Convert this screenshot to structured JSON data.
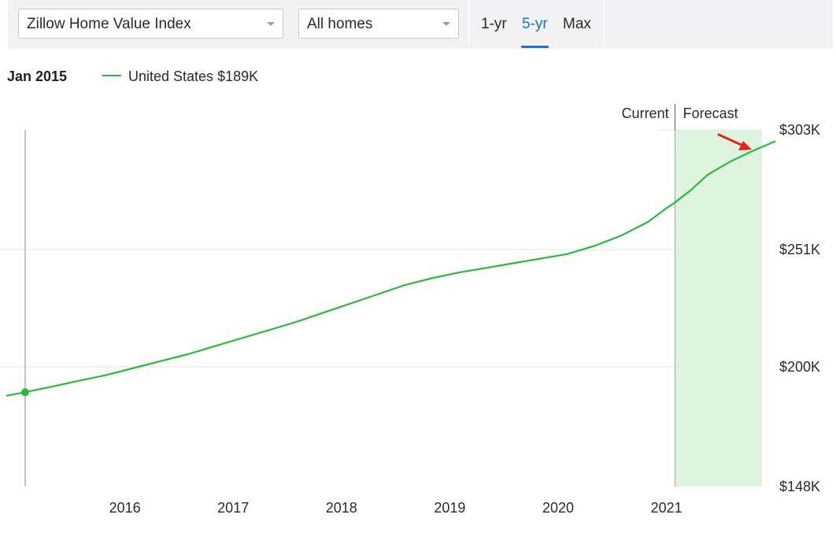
{
  "controls": {
    "metric_select": "Zillow Home Value Index",
    "home_type_select": "All homes",
    "range_tabs": [
      "1-yr",
      "5-yr",
      "Max"
    ],
    "active_range": "5-yr",
    "accent_color": "#1f6fd1"
  },
  "hover": {
    "date": "Jan 2015",
    "legend": "United States $189K",
    "line_color": "#2db83d"
  },
  "chart_data": {
    "type": "line",
    "title": "",
    "xlabel": "",
    "ylabel": "",
    "x_ticks": [
      "2016",
      "2017",
      "2018",
      "2019",
      "2020",
      "2021"
    ],
    "y_ticks": [
      "$148K",
      "$200K",
      "$251K",
      "$303K"
    ],
    "ylim": [
      148,
      303
    ],
    "y_unit": "$K",
    "grid": "horizontal",
    "series": [
      {
        "name": "United States",
        "x": [
          2014.83,
          2015.0,
          2015.25,
          2015.5,
          2015.75,
          2016.0,
          2016.25,
          2016.5,
          2016.75,
          2017.0,
          2017.25,
          2017.5,
          2017.75,
          2018.0,
          2018.25,
          2018.5,
          2018.75,
          2019.0,
          2019.25,
          2019.5,
          2019.75,
          2020.0,
          2020.25,
          2020.5,
          2020.75,
          2020.92,
          2021.0,
          2021.15,
          2021.3,
          2021.5,
          2021.7,
          2021.92
        ],
        "y": [
          187.5,
          189.0,
          191.5,
          194.0,
          196.5,
          199.5,
          202.5,
          205.5,
          209.0,
          212.5,
          216.0,
          219.5,
          223.5,
          227.5,
          231.5,
          235.5,
          238.5,
          241.0,
          243.0,
          245.0,
          247.0,
          249.0,
          252.5,
          257.0,
          263.0,
          269.0,
          271.5,
          277.0,
          283.5,
          289.0,
          293.5,
          298.0
        ]
      }
    ],
    "hover_point": {
      "x": 2015.0,
      "y": 189.0
    },
    "current_label": "Current",
    "forecast_label": "Forecast",
    "forecast_start": 2021.0,
    "forecast_color": "#def4df"
  },
  "annotation": {
    "arrow_color": "#e5231c"
  }
}
